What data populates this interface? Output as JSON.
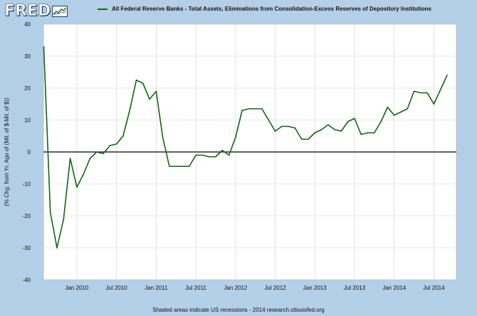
{
  "header": {
    "logo_text": "FRED",
    "logo_icon": "fred-graph-icon",
    "legend_label": "All Federal Reserve Banks - Total Assets, Eliminations from Consolidation-Excess Reserves of Depository Institutions"
  },
  "footer": {
    "note": "Shaded areas indicate US recessions - 2014 research.stlouisfed.org"
  },
  "colors": {
    "background": "#b4d0e9",
    "plot_background": "#ffffff",
    "series": "#116611",
    "zero_line": "#000000",
    "gridline": "#d0d0d0"
  },
  "chart_data": {
    "type": "line",
    "title": "",
    "xlabel": "",
    "ylabel": "(% Chg. from Yr. Ago of (Mil. of $-Mil. of $))",
    "ylim": [
      -40,
      40
    ],
    "xlim": [
      "2009-08",
      "2014-10"
    ],
    "yticks": [
      -40,
      -30,
      -20,
      -10,
      0,
      10,
      20,
      30,
      40
    ],
    "xticks": [
      {
        "date": "2010-01",
        "label": "Jan 2010"
      },
      {
        "date": "2010-07",
        "label": "Jul 2010"
      },
      {
        "date": "2011-01",
        "label": "Jan 2011"
      },
      {
        "date": "2011-07",
        "label": "Jul 2011"
      },
      {
        "date": "2012-01",
        "label": "Jan 2012"
      },
      {
        "date": "2012-07",
        "label": "Jul 2012"
      },
      {
        "date": "2013-01",
        "label": "Jan 2013"
      },
      {
        "date": "2013-07",
        "label": "Jul 2013"
      },
      {
        "date": "2014-01",
        "label": "Jan 2014"
      },
      {
        "date": "2014-07",
        "label": "Jul 2014"
      }
    ],
    "grid": true,
    "legend_position": "top",
    "series": [
      {
        "name": "All Federal Reserve Banks - Total Assets, Eliminations from Consolidation-Excess Reserves of Depository Institutions",
        "x": [
          "2009-08",
          "2009-09",
          "2009-10",
          "2009-11",
          "2009-12",
          "2010-01",
          "2010-02",
          "2010-03",
          "2010-04",
          "2010-05",
          "2010-06",
          "2010-07",
          "2010-08",
          "2010-09",
          "2010-10",
          "2010-11",
          "2010-12",
          "2011-01",
          "2011-02",
          "2011-03",
          "2011-04",
          "2011-05",
          "2011-06",
          "2011-07",
          "2011-08",
          "2011-09",
          "2011-10",
          "2011-11",
          "2011-12",
          "2012-01",
          "2012-02",
          "2012-03",
          "2012-04",
          "2012-05",
          "2012-06",
          "2012-07",
          "2012-08",
          "2012-09",
          "2012-10",
          "2012-11",
          "2012-12",
          "2013-01",
          "2013-02",
          "2013-03",
          "2013-04",
          "2013-05",
          "2013-06",
          "2013-07",
          "2013-08",
          "2013-09",
          "2013-10",
          "2013-11",
          "2013-12",
          "2014-01",
          "2014-02",
          "2014-03",
          "2014-04",
          "2014-05",
          "2014-06",
          "2014-07",
          "2014-08",
          "2014-09"
        ],
        "y": [
          33,
          -19,
          -30,
          -21,
          -2,
          -11,
          -7,
          -2,
          0,
          -0.5,
          2,
          2.5,
          5,
          13,
          22.5,
          21.5,
          16.5,
          19,
          4.5,
          -4.5,
          -4.5,
          -4.5,
          -4.5,
          -1,
          -1,
          -1.5,
          -1.5,
          0.5,
          -1,
          4.5,
          13,
          13.5,
          13.5,
          13.5,
          10,
          6.5,
          8,
          8,
          7.5,
          4,
          4,
          6,
          7,
          8.5,
          7,
          6.5,
          9.5,
          10.5,
          5.5,
          6,
          6,
          9.5,
          14,
          11.5,
          12.5,
          13.5,
          19,
          18.5,
          18.5,
          15,
          19.5,
          24
        ]
      }
    ]
  }
}
